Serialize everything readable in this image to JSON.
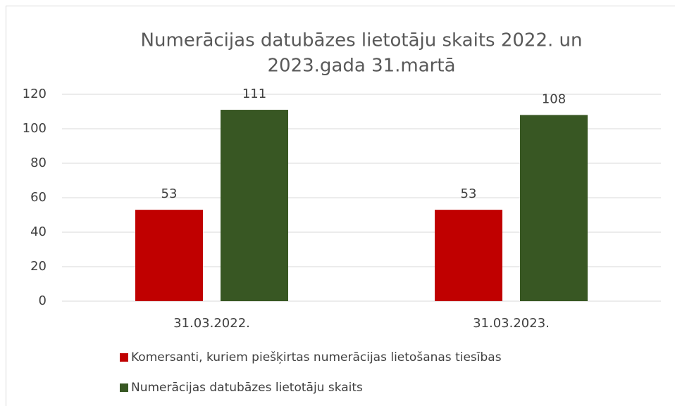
{
  "chart_data": {
    "type": "bar",
    "title": [
      "Numerācijas datubāzes lietotāju skaits 2022. un",
      "2023.gada 31.martā"
    ],
    "categories": [
      "31.03.2022.",
      "31.03.2023."
    ],
    "series": [
      {
        "name": "Komersanti, kuriem piešķirtas numerācijas lietošanas tiesības",
        "color": "#c00000",
        "values": [
          53,
          53
        ]
      },
      {
        "name": "Numerācijas datubāzes lietotāju skaits",
        "color": "#385723",
        "values": [
          111,
          108
        ]
      }
    ],
    "ylim": [
      0,
      120
    ],
    "yticks": [
      0,
      20,
      40,
      60,
      80,
      100,
      120
    ],
    "grid": true,
    "legend": "bottom"
  }
}
